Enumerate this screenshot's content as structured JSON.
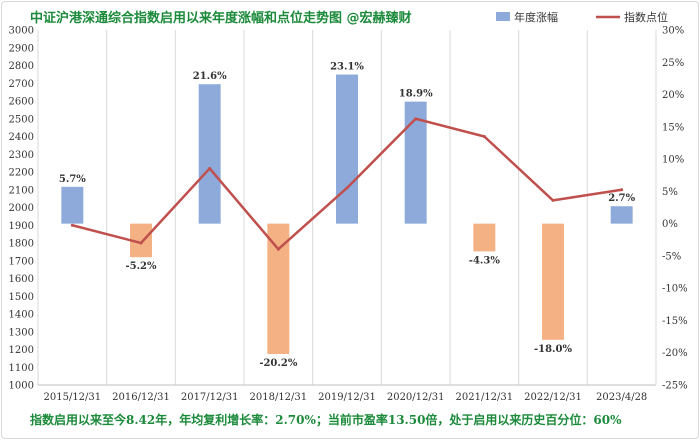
{
  "chart_data": {
    "type": "bar+line",
    "title": "中证沪港深通综合指数启用以来年度涨幅和点位走势图  @宏赫臻财",
    "categories": [
      "2015/12/31",
      "2016/12/31",
      "2017/12/31",
      "2018/12/31",
      "2019/12/31",
      "2020/12/31",
      "2021/12/31",
      "2022/12/31",
      "2023/4/28"
    ],
    "series": [
      {
        "name": "年度涨幅",
        "type": "bar",
        "axis": "right",
        "values": [
          5.7,
          -5.2,
          21.6,
          -20.2,
          23.1,
          18.9,
          -4.3,
          -18.0,
          2.7
        ],
        "labels": [
          "5.7%",
          "-5.2%",
          "21.6%",
          "-20.2%",
          "23.1%",
          "18.9%",
          "-4.3%",
          "-18.0%",
          "2.7%"
        ],
        "color_positive": "#8eaadb",
        "color_negative": "#f4b183"
      },
      {
        "name": "指数点位",
        "type": "line",
        "axis": "left",
        "values": [
          1900,
          1800,
          2220,
          1765,
          2110,
          2500,
          2400,
          2040,
          2100
        ],
        "color": "#c0504d"
      }
    ],
    "y_left": {
      "range": [
        1000,
        3000
      ],
      "ticks": [
        "1000",
        "1100",
        "1200",
        "1300",
        "1400",
        "1500",
        "1600",
        "1700",
        "1800",
        "1900",
        "2000",
        "2100",
        "2200",
        "2300",
        "2400",
        "2500",
        "2600",
        "2700",
        "2800",
        "2900",
        "3000"
      ]
    },
    "y_right": {
      "range": [
        -25,
        30
      ],
      "ticks": [
        "-25%",
        "-20%",
        "-15%",
        "-10%",
        "-5%",
        "0%",
        "5%",
        "10%",
        "15%",
        "20%",
        "25%",
        "30%"
      ]
    },
    "grid": "vertical",
    "legend_position": "top-right"
  },
  "footer": "指数启用以来至今8.42年，年均复利增长率：2.70%；当前市盈率13.50倍，处于启用以来历史百分位：60%"
}
